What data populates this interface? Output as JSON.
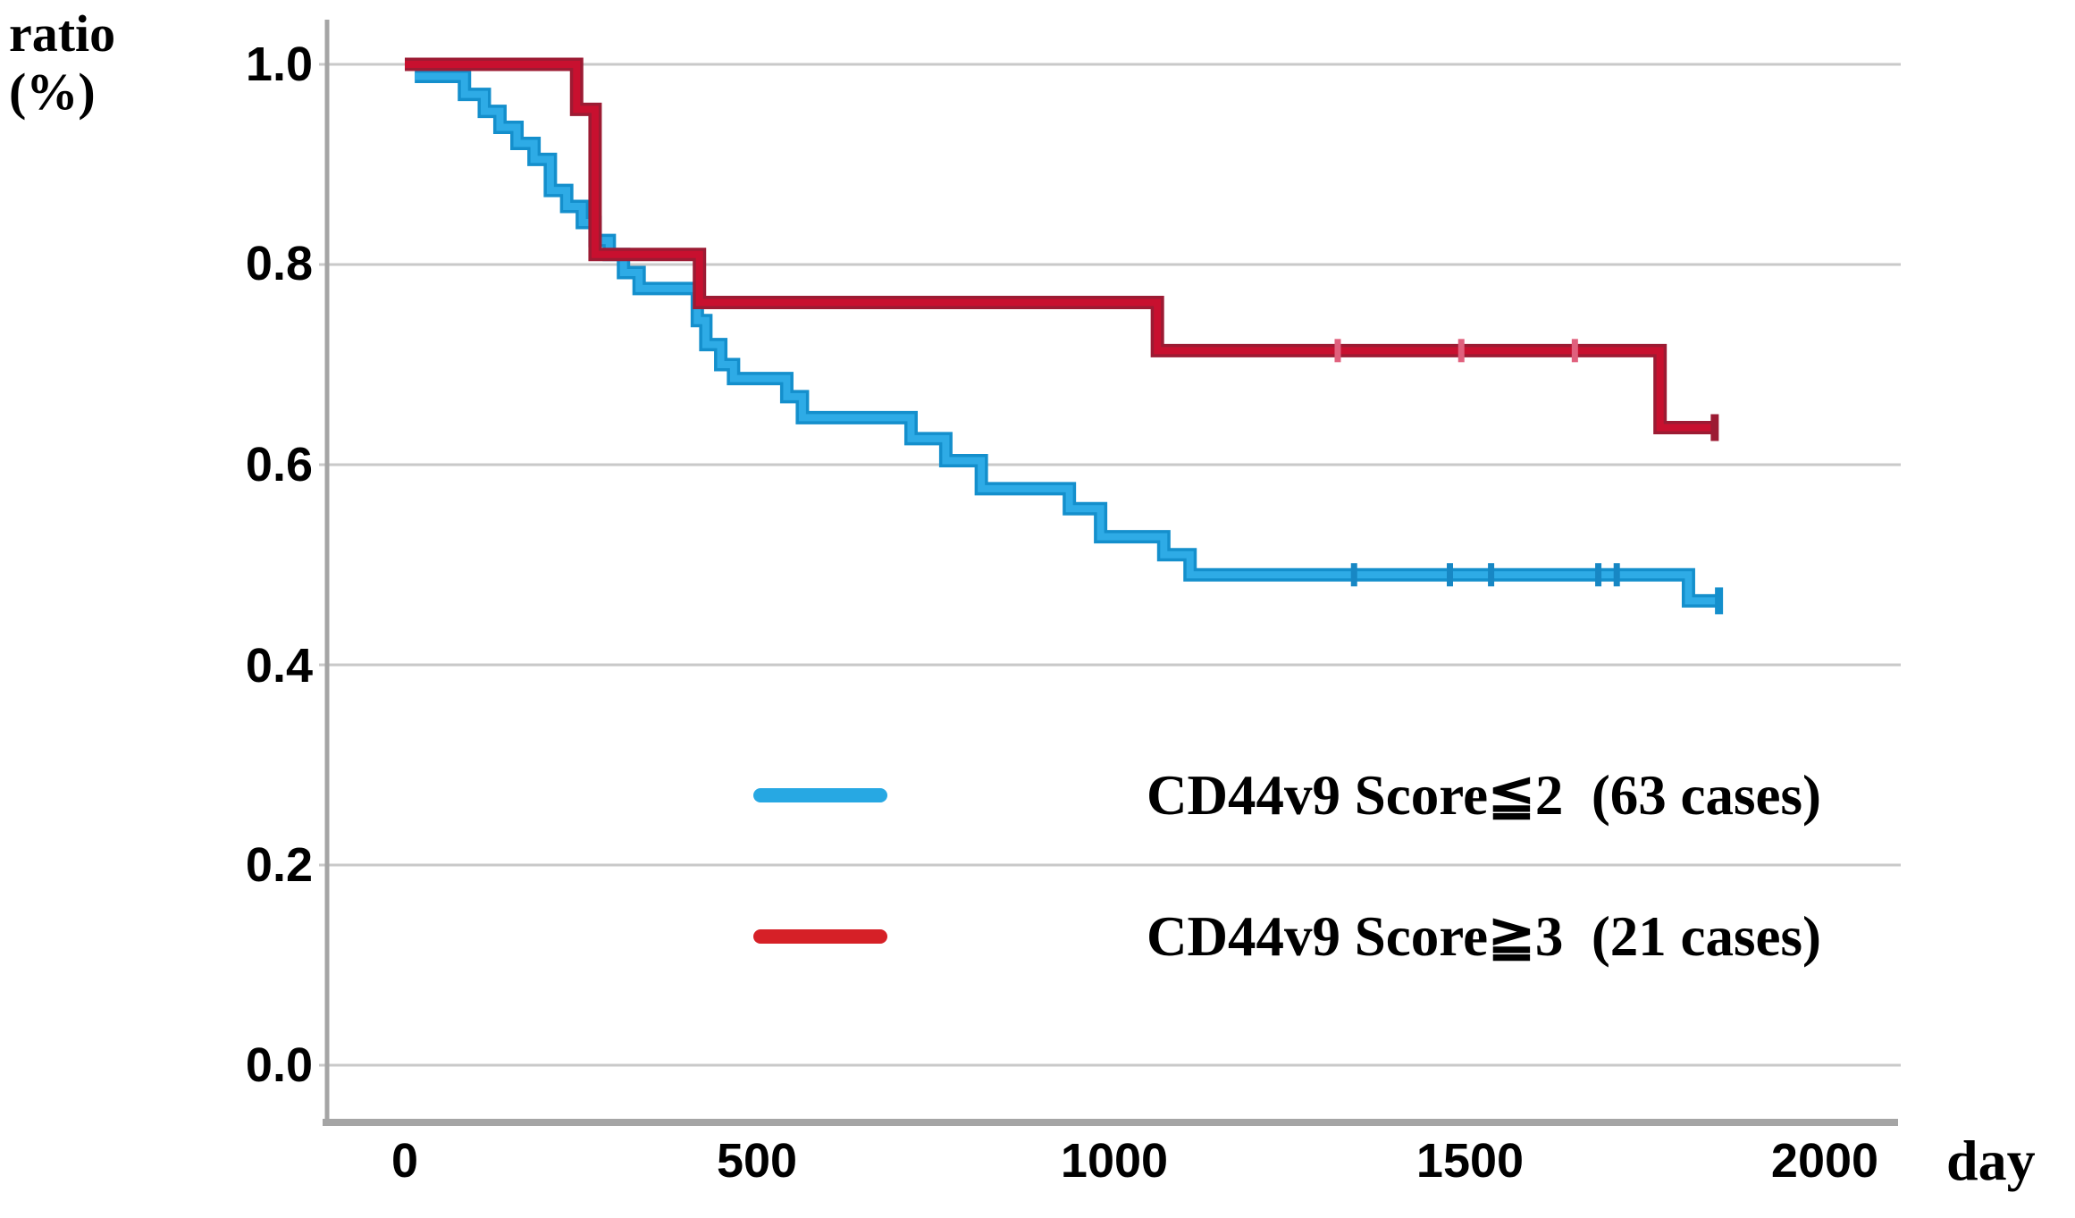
{
  "figure": {
    "y_axis_label_line1": "ratio",
    "y_axis_label_line2": "(%)",
    "x_axis_label": "day",
    "y_ticks": [
      "1.0",
      "0.8",
      "0.6",
      "0.4",
      "0.2",
      "0.0"
    ],
    "x_ticks": [
      "0",
      "500",
      "1000",
      "1500",
      "2000"
    ]
  },
  "legend": [
    {
      "label": "CD44v9 Score≦2  (63 cases)",
      "color": "#27a8e3"
    },
    {
      "label": "CD44v9 Score≧3  (21 cases)",
      "color": "#d62027"
    }
  ],
  "chart_data": {
    "type": "line",
    "subtype": "kaplan-meier-step",
    "title": "",
    "xlabel": "day",
    "ylabel": "ratio (%)",
    "xlim": [
      0,
      2100
    ],
    "ylim": [
      0.0,
      1.0
    ],
    "x_tick_values": [
      0,
      500,
      1000,
      1500,
      2000
    ],
    "y_tick_values": [
      0.0,
      0.2,
      0.4,
      0.6,
      0.8,
      1.0
    ],
    "grid": true,
    "grid_color": "#c9c9c9",
    "axis_color": "#a5a5a5",
    "legend_position": "lower-center",
    "series": [
      {
        "name": "CD44v9 Score≦2 (63 cases)",
        "n_cases": 63,
        "color": "#2eabe6",
        "edge_color": "#148fcc",
        "censor_color": "#1787c4",
        "steps": [
          [
            14,
            0.988
          ],
          [
            84,
            0.97
          ],
          [
            112,
            0.953
          ],
          [
            134,
            0.937
          ],
          [
            158,
            0.921
          ],
          [
            182,
            0.905
          ],
          [
            205,
            0.874
          ],
          [
            228,
            0.858
          ],
          [
            250,
            0.842
          ],
          [
            268,
            0.824
          ],
          [
            288,
            0.81
          ],
          [
            308,
            0.792
          ],
          [
            330,
            0.776
          ],
          [
            412,
            0.744
          ],
          [
            424,
            0.72
          ],
          [
            445,
            0.7
          ],
          [
            463,
            0.686
          ],
          [
            538,
            0.668
          ],
          [
            560,
            0.647
          ],
          [
            713,
            0.626
          ],
          [
            762,
            0.604
          ],
          [
            812,
            0.576
          ],
          [
            936,
            0.556
          ],
          [
            980,
            0.528
          ],
          [
            1069,
            0.51
          ],
          [
            1106,
            0.49
          ],
          [
            1808,
            0.464
          ]
        ],
        "end_day": 1851,
        "censor_days": [
          1337,
          1472,
          1530,
          1681,
          1707
        ]
      },
      {
        "name": "CD44v9 Score≧3 (21 cases)",
        "n_cases": 21,
        "color": "#c8102f",
        "edge_color": "#9c1b33",
        "censor_color": "#e0607d",
        "steps": [
          [
            0,
            1.0
          ],
          [
            242,
            0.955
          ],
          [
            268,
            0.81
          ],
          [
            415,
            0.762
          ],
          [
            1060,
            0.714
          ],
          [
            1768,
            0.637
          ]
        ],
        "end_day": 1845,
        "censor_days": [
          1314,
          1488,
          1648
        ]
      }
    ]
  }
}
